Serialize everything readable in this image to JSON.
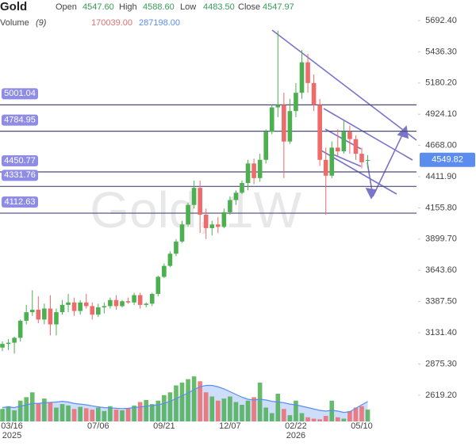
{
  "chart_data": {
    "type": "candlestick",
    "title": "Gold",
    "watermark": "Gold, 1W",
    "ohlc_labels": {
      "open": "Open",
      "high": "High",
      "low": "Low",
      "close": "Close"
    },
    "ohlc": {
      "open": {
        "value": 4547.6,
        "label": "4547.60"
      },
      "high": {
        "value": 4588.6,
        "label": "4588.60"
      },
      "low": {
        "value": 4483.5,
        "label": "4483.50"
      },
      "close": {
        "value": 4547.97,
        "label": "4547.97"
      }
    },
    "volume_title": "Volume",
    "volume_period": "(9)",
    "volume_now": {
      "value": 170039,
      "label": "170039.00"
    },
    "volume_ma_now": {
      "value": 287198,
      "label": "287198.00"
    },
    "categories": [
      "03/16\n2025",
      null,
      null,
      null,
      null,
      null,
      null,
      null,
      null,
      null,
      null,
      null,
      null,
      null,
      null,
      null,
      "07/06",
      null,
      null,
      null,
      null,
      null,
      null,
      null,
      null,
      null,
      null,
      "09/21",
      null,
      null,
      null,
      null,
      null,
      null,
      null,
      null,
      null,
      null,
      "12/07",
      null,
      null,
      null,
      null,
      null,
      null,
      null,
      null,
      null,
      null,
      "02/22\n2026",
      null,
      null,
      null,
      null,
      null,
      null,
      null,
      null,
      null,
      null,
      "05/10",
      null
    ],
    "candles": [
      [
        3010,
        3060,
        2980,
        3040
      ],
      [
        3040,
        3080,
        2990,
        3050
      ],
      [
        3050,
        3100,
        2960,
        3090
      ],
      [
        3090,
        3240,
        3060,
        3230
      ],
      [
        3230,
        3360,
        3200,
        3300
      ],
      [
        3300,
        3480,
        3270,
        3320
      ],
      [
        3320,
        3430,
        3210,
        3240
      ],
      [
        3240,
        3370,
        3200,
        3330
      ],
      [
        3330,
        3440,
        3110,
        3200
      ],
      [
        3200,
        3330,
        3110,
        3300
      ],
      [
        3300,
        3400,
        3280,
        3360
      ],
      [
        3360,
        3450,
        3300,
        3380
      ],
      [
        3380,
        3420,
        3270,
        3310
      ],
      [
        3310,
        3400,
        3280,
        3380
      ],
      [
        3380,
        3450,
        3330,
        3350
      ],
      [
        3350,
        3380,
        3240,
        3280
      ],
      [
        3280,
        3370,
        3260,
        3340
      ],
      [
        3340,
        3380,
        3290,
        3350
      ],
      [
        3350,
        3420,
        3330,
        3400
      ],
      [
        3400,
        3440,
        3320,
        3350
      ],
      [
        3350,
        3400,
        3340,
        3390
      ],
      [
        3390,
        3420,
        3370,
        3380
      ],
      [
        3380,
        3460,
        3360,
        3440
      ],
      [
        3440,
        3460,
        3330,
        3360
      ],
      [
        3360,
        3380,
        3340,
        3370
      ],
      [
        3370,
        3460,
        3350,
        3450
      ],
      [
        3450,
        3600,
        3430,
        3590
      ],
      [
        3590,
        3700,
        3580,
        3680
      ],
      [
        3680,
        3800,
        3670,
        3780
      ],
      [
        3780,
        3900,
        3760,
        3880
      ],
      [
        3880,
        4050,
        3870,
        4020
      ],
      [
        4020,
        4200,
        4000,
        4180
      ],
      [
        4180,
        4380,
        4150,
        4320
      ],
      [
        4320,
        4380,
        3950,
        4100
      ],
      [
        4100,
        4150,
        3900,
        3990
      ],
      [
        3990,
        4050,
        3930,
        4020
      ],
      [
        4020,
        4080,
        3950,
        4000
      ],
      [
        4000,
        4150,
        3990,
        4120
      ],
      [
        4120,
        4250,
        4100,
        4220
      ],
      [
        4220,
        4300,
        4180,
        4280
      ],
      [
        4280,
        4380,
        4270,
        4360
      ],
      [
        4360,
        4550,
        4300,
        4520
      ],
      [
        4520,
        4560,
        4350,
        4400
      ],
      [
        4400,
        4600,
        4370,
        4550
      ],
      [
        4550,
        4800,
        4520,
        4780
      ],
      [
        4780,
        5000,
        4760,
        4980
      ],
      [
        4980,
        5610,
        4900,
        5000
      ],
      [
        5000,
        5100,
        4400,
        4700
      ],
      [
        4700,
        5050,
        4680,
        4950
      ],
      [
        4950,
        5180,
        4900,
        5100
      ],
      [
        5100,
        5450,
        5050,
        5350
      ],
      [
        5350,
        5420,
        5100,
        5180
      ],
      [
        5180,
        5250,
        4950,
        5000
      ],
      [
        5000,
        5050,
        4500,
        4550
      ],
      [
        4550,
        4650,
        4100,
        4420
      ],
      [
        4420,
        4700,
        4400,
        4650
      ],
      [
        4650,
        4800,
        4580,
        4620
      ],
      [
        4620,
        4870,
        4600,
        4780
      ],
      [
        4780,
        4830,
        4600,
        4720
      ],
      [
        4720,
        4750,
        4550,
        4600
      ],
      [
        4600,
        4650,
        4480,
        4530
      ],
      [
        4547.6,
        4588.6,
        4483.5,
        4547.97
      ]
    ],
    "volumes": [
      180000,
      220000,
      160000,
      300000,
      350000,
      420000,
      260000,
      330000,
      280000,
      200000,
      250000,
      230000,
      180000,
      210000,
      190000,
      170000,
      200000,
      150000,
      220000,
      170000,
      160000,
      190000,
      230000,
      280000,
      310000,
      250000,
      300000,
      380000,
      420000,
      520000,
      560000,
      610000,
      650000,
      580000,
      420000,
      360000,
      300000,
      330000,
      360000,
      280000,
      240000,
      300000,
      350000,
      560000,
      200000,
      120000,
      400000,
      180000,
      90000,
      300000,
      120000,
      60000,
      40000,
      30000,
      80000,
      300000,
      60000,
      40000,
      150000,
      200000,
      220000,
      170039
    ],
    "volume_ma": [
      200000,
      210000,
      200000,
      220000,
      240000,
      260000,
      260000,
      270000,
      275000,
      280000,
      290000,
      280000,
      260000,
      250000,
      240000,
      225000,
      210000,
      200000,
      195000,
      190000,
      185000,
      190000,
      200000,
      210000,
      220000,
      230000,
      240000,
      260000,
      290000,
      330000,
      370000,
      410000,
      460000,
      500000,
      520000,
      520000,
      500000,
      470000,
      430000,
      390000,
      350000,
      320000,
      310000,
      320000,
      310000,
      290000,
      280000,
      270000,
      250000,
      240000,
      220000,
      200000,
      180000,
      160000,
      150000,
      160000,
      150000,
      130000,
      140000,
      190000,
      240000,
      287198
    ],
    "ylim": [
      2404,
      5861
    ],
    "yticks": [
      {
        "value": 5692.4,
        "label": "5692.40"
      },
      {
        "value": 5436.3,
        "label": "5436.30"
      },
      {
        "value": 5180.2,
        "label": "5180.20"
      },
      {
        "value": 4924.1,
        "label": "4924.10"
      },
      {
        "value": 4668,
        "label": "4668.00"
      },
      {
        "value": 4411.9,
        "label": "4411.90"
      },
      {
        "value": 4155.8,
        "label": "4155.80"
      },
      {
        "value": 3899.7,
        "label": "3899.70"
      },
      {
        "value": 3643.6,
        "label": "3643.60"
      },
      {
        "value": 3387.5,
        "label": "3387.50"
      },
      {
        "value": 3131.4,
        "label": "3131.40"
      },
      {
        "value": 2875.3,
        "label": "2875.30"
      },
      {
        "value": 2619.2,
        "label": "2619.20"
      }
    ],
    "vol_ylim": [
      0,
      800000
    ],
    "levels": [
      {
        "value": 5001.04,
        "label": "5001.04"
      },
      {
        "value": 4784.95,
        "label": "4784.95"
      },
      {
        "value": 4450.77,
        "label": "4450.77"
      },
      {
        "value": 4331.76,
        "label": "4331.76"
      },
      {
        "value": 4112.63,
        "label": "4112.63"
      }
    ],
    "last_price": {
      "value": 4549.82,
      "label": "4549.82"
    },
    "up_color": "#4caf50",
    "down_color": "#ef6a6a",
    "level_color": "#4b4b78",
    "tag_color": "#8f8ce6",
    "last_color": "#5b8def",
    "ma_color": "#5b8def"
  }
}
